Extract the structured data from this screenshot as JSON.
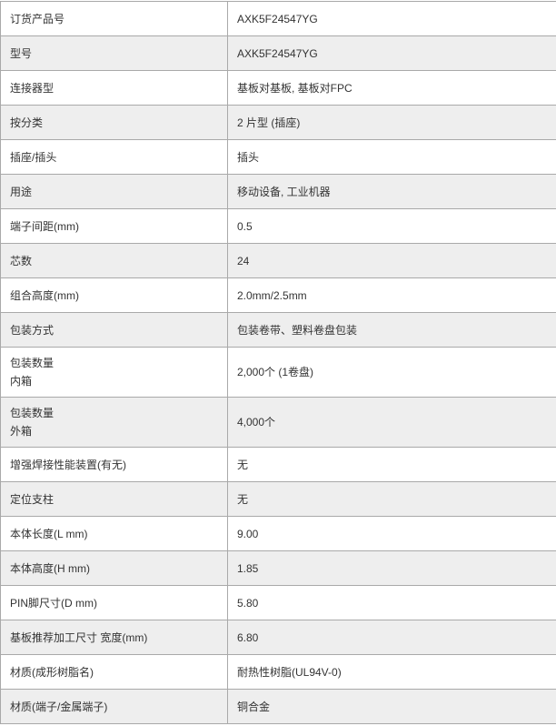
{
  "spec_table": {
    "rows": [
      {
        "label": [
          "订货产品号"
        ],
        "value": "AXK5F24547YG"
      },
      {
        "label": [
          "型号"
        ],
        "value": "AXK5F24547YG"
      },
      {
        "label": [
          "连接器型"
        ],
        "value": "基板对基板, 基板对FPC"
      },
      {
        "label": [
          "按分类"
        ],
        "value": "2 片型 (插座)"
      },
      {
        "label": [
          "插座/插头"
        ],
        "value": "插头"
      },
      {
        "label": [
          "用途"
        ],
        "value": "移动设备, 工业机器"
      },
      {
        "label": [
          "端子间距(mm)"
        ],
        "value": "0.5"
      },
      {
        "label": [
          "芯数"
        ],
        "value": "24"
      },
      {
        "label": [
          "组合高度(mm)"
        ],
        "value": "2.0mm/2.5mm"
      },
      {
        "label": [
          "包装方式"
        ],
        "value": "包装卷带、塑料卷盘包装"
      },
      {
        "label": [
          "包装数量",
          "内箱"
        ],
        "value": "2,000个 (1卷盘)"
      },
      {
        "label": [
          "包装数量",
          "外箱"
        ],
        "value": "4,000个"
      },
      {
        "label": [
          "增强焊接性能装置(有无)"
        ],
        "value": "无"
      },
      {
        "label": [
          "定位支柱"
        ],
        "value": "无"
      },
      {
        "label": [
          "本体长度(L mm)"
        ],
        "value": "9.00"
      },
      {
        "label": [
          "本体高度(H mm)"
        ],
        "value": "1.85"
      },
      {
        "label": [
          "PIN脚尺寸(D mm)"
        ],
        "value": "5.80"
      },
      {
        "label": [
          "基板推荐加工尺寸 宽度(mm)"
        ],
        "value": "6.80"
      },
      {
        "label": [
          "材质(成形树脂名)"
        ],
        "value": "耐热性树脂(UL94V-0)"
      },
      {
        "label": [
          "材质(端子/金属端子)"
        ],
        "value": "铜合金"
      }
    ]
  }
}
